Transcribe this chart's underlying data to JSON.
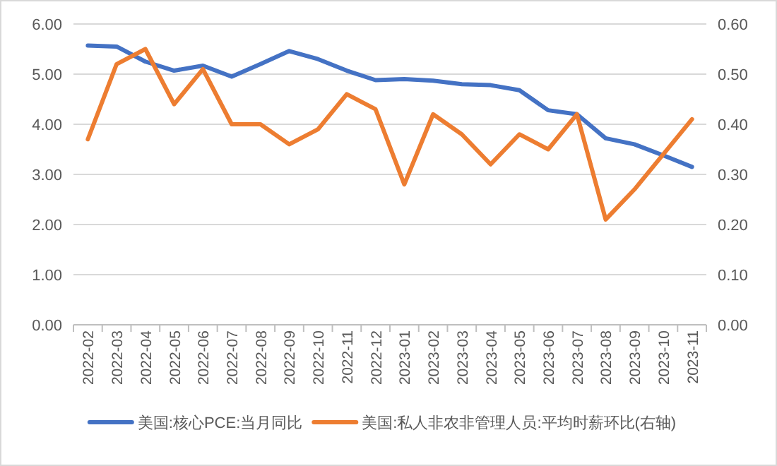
{
  "chart_data": {
    "type": "line",
    "categories": [
      "2022-02",
      "2022-03",
      "2022-04",
      "2022-05",
      "2022-06",
      "2022-07",
      "2022-08",
      "2022-09",
      "2022-10",
      "2022-11",
      "2022-12",
      "2023-01",
      "2023-02",
      "2023-03",
      "2023-04",
      "2023-05",
      "2023-06",
      "2023-07",
      "2023-08",
      "2023-09",
      "2023-10",
      "2023-11"
    ],
    "series": [
      {
        "name": "美国:核心PCE:当月同比",
        "color": "#4472c4",
        "values": [
          5.57,
          5.55,
          5.25,
          5.07,
          5.17,
          4.95,
          5.2,
          5.46,
          5.3,
          5.07,
          4.88,
          4.9,
          4.87,
          4.8,
          4.78,
          4.68,
          4.28,
          4.2,
          3.72,
          3.6,
          3.38,
          3.15
        ]
      },
      {
        "name": "美国:私人非农非管理人员:平均时薪环比(右轴)",
        "color": "#ed7d31",
        "axis": "y2",
        "values": [
          0.37,
          0.52,
          0.55,
          0.44,
          0.51,
          0.4,
          0.4,
          0.36,
          0.39,
          0.46,
          0.43,
          0.28,
          0.42,
          0.38,
          0.32,
          0.38,
          0.35,
          0.42,
          0.21,
          0.27,
          0.34,
          0.41
        ]
      }
    ],
    "ylim": [
      0,
      6
    ],
    "yticks": [
      {
        "value": 0,
        "label": "0.00"
      },
      {
        "value": 1,
        "label": "1.00"
      },
      {
        "value": 2,
        "label": "2.00"
      },
      {
        "value": 3,
        "label": "3.00"
      },
      {
        "value": 4,
        "label": "4.00"
      },
      {
        "value": 5,
        "label": "5.00"
      },
      {
        "value": 6,
        "label": "6.00"
      }
    ],
    "y2lim": [
      0,
      0.6
    ],
    "y2ticks": [
      {
        "value": 0,
        "label": "0.00"
      },
      {
        "value": 0.1,
        "label": "0.10"
      },
      {
        "value": 0.2,
        "label": "0.20"
      },
      {
        "value": 0.3,
        "label": "0.30"
      },
      {
        "value": 0.4,
        "label": "0.40"
      },
      {
        "value": 0.5,
        "label": "0.50"
      },
      {
        "value": 0.6,
        "label": "0.60"
      }
    ],
    "grid": "y",
    "legend": "bottom",
    "marker": "none",
    "line_style": "solid"
  }
}
